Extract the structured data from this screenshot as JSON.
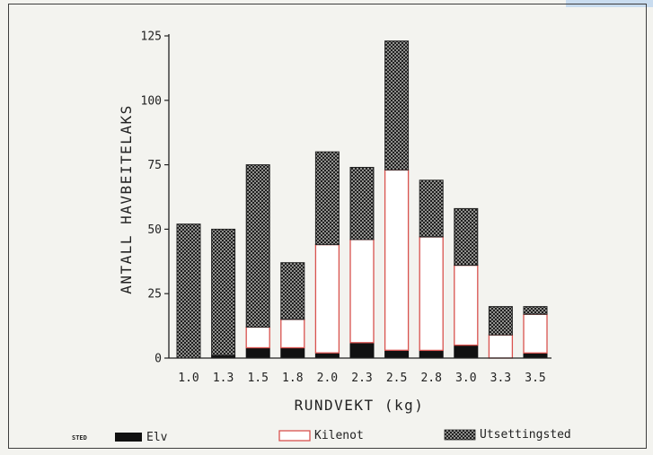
{
  "chart_data": {
    "type": "bar",
    "stacked": true,
    "categories": [
      "1.0",
      "1.3",
      "1.5",
      "1.8",
      "2.0",
      "2.3",
      "2.5",
      "2.8",
      "3.0",
      "3.3",
      "3.5"
    ],
    "series": [
      {
        "name": "Elv",
        "values": [
          0,
          1,
          4,
          4,
          2,
          6,
          3,
          3,
          5,
          0,
          2
        ],
        "color": "#111111"
      },
      {
        "name": "Kilenot",
        "values": [
          0,
          0,
          8,
          11,
          42,
          40,
          70,
          44,
          31,
          9,
          15
        ],
        "color": "#d9534f"
      },
      {
        "name": "Utsettingsted",
        "values": [
          52,
          49,
          63,
          22,
          36,
          28,
          50,
          22,
          22,
          11,
          3
        ],
        "color": "#2a2a2a"
      }
    ],
    "title": "",
    "xlabel": "RUNDVEKT (kg)",
    "ylabel": "ANTALL HAVBEITELAKS",
    "ylim": [
      0,
      125
    ],
    "yticks": [
      0,
      25,
      50,
      75,
      100,
      125
    ],
    "legend_title": "STED",
    "legend_position": "bottom",
    "grid": false
  }
}
